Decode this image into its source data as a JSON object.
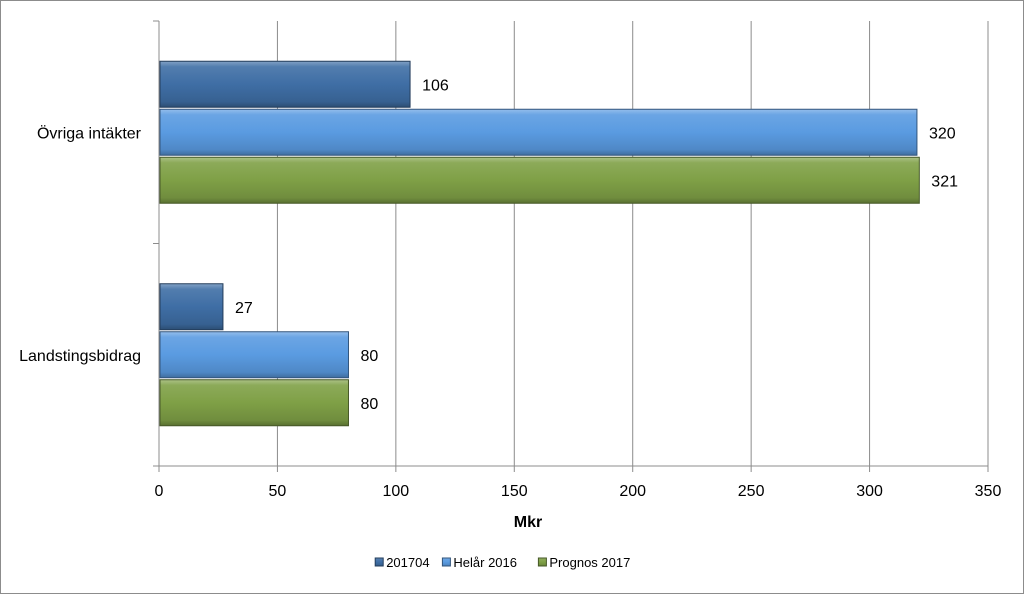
{
  "chart_data": {
    "type": "bar",
    "orientation": "horizontal",
    "categories": [
      "Övriga intäkter",
      "Landstingsbidrag"
    ],
    "series": [
      {
        "name": "201704",
        "values": [
          106,
          27
        ]
      },
      {
        "name": "Helår 2016",
        "values": [
          320,
          80
        ]
      },
      {
        "name": "Prognos 2017",
        "values": [
          321,
          80
        ]
      }
    ],
    "xlabel": "Mkr",
    "ylabel": "",
    "title": "",
    "xlim": [
      0,
      350
    ],
    "xticks": [
      0,
      50,
      100,
      150,
      200,
      250,
      300,
      350
    ],
    "grid": "vertical",
    "legend": "bottom-center",
    "colors": {
      "201704": "#3f6ea5",
      "Helår 2016": "#5a9be1",
      "Prognos 2017": "#7fa046"
    }
  }
}
